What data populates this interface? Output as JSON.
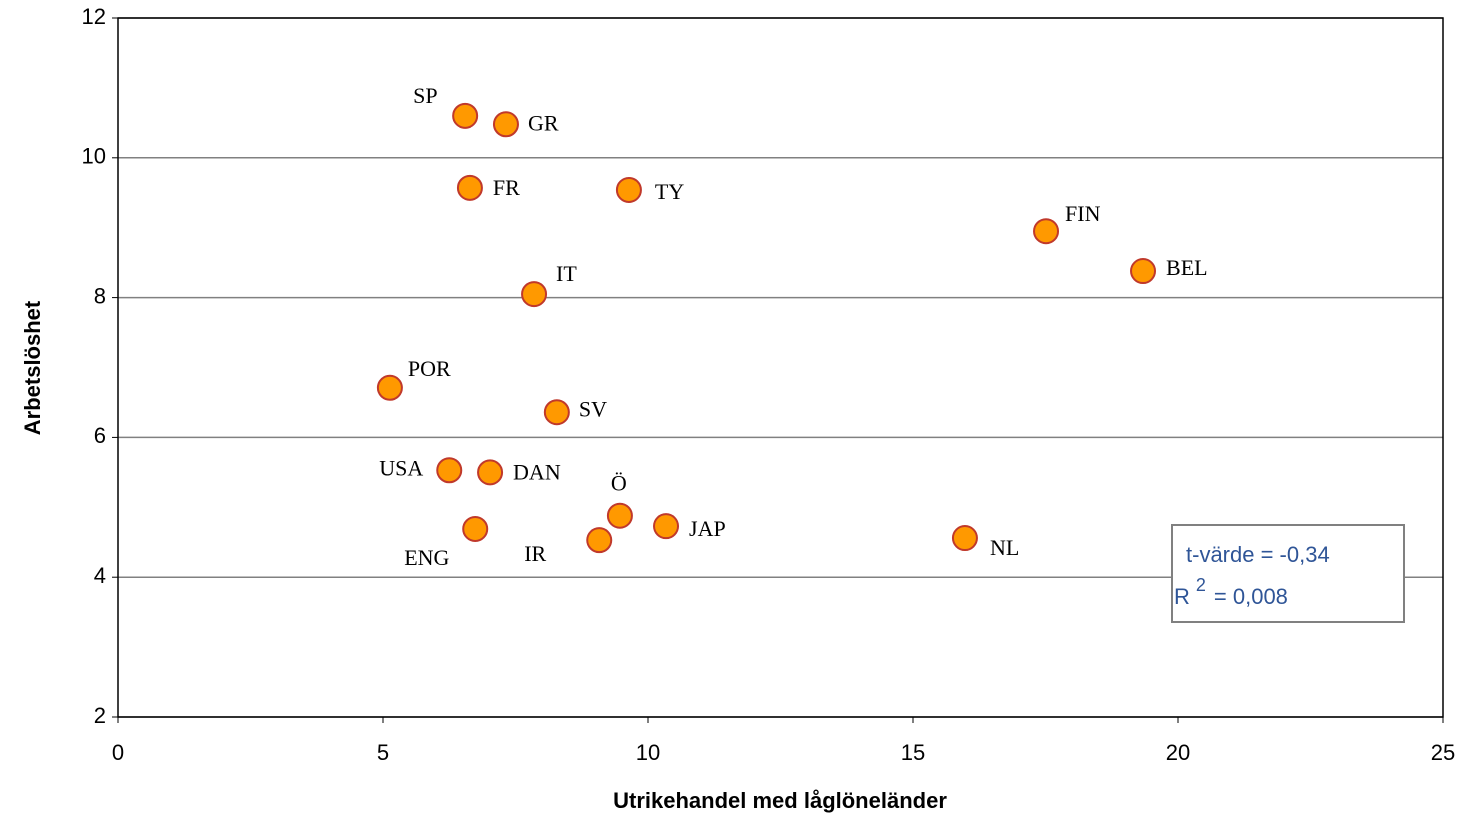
{
  "chart_data": {
    "type": "scatter",
    "x_label": "Utrikehandel med låglöneländer",
    "y_label": "Arbetslöshet",
    "labels": [
      "SP",
      "GR",
      "FR",
      "TY",
      "FIN",
      "BEL",
      "IT",
      "POR",
      "SV",
      "USA",
      "DAN",
      "Ö",
      "JAP",
      "ENG",
      "IR",
      "NL"
    ],
    "x": [
      6.55,
      7.32,
      6.64,
      9.64,
      17.51,
      19.34,
      7.85,
      5.13,
      8.28,
      6.25,
      7.02,
      9.47,
      10.34,
      6.74,
      9.08,
      15.98
    ],
    "values": [
      10.6,
      10.48,
      9.57,
      9.54,
      8.95,
      8.38,
      8.05,
      6.71,
      6.36,
      5.53,
      5.5,
      4.88,
      4.73,
      4.69,
      4.53,
      4.56
    ],
    "color": "#ff9900",
    "xlim": [
      0,
      25
    ],
    "xticks": [
      0,
      5,
      10,
      15,
      20,
      25
    ],
    "ylim": [
      2,
      12
    ],
    "yticks": [
      2,
      4,
      6,
      8,
      10,
      12
    ],
    "grid": true,
    "annotations": {
      "t_value": "t-värde = -0,34",
      "r2_base": "R",
      "r2_sup": "2",
      "r2_rest": "= 0,008"
    }
  }
}
